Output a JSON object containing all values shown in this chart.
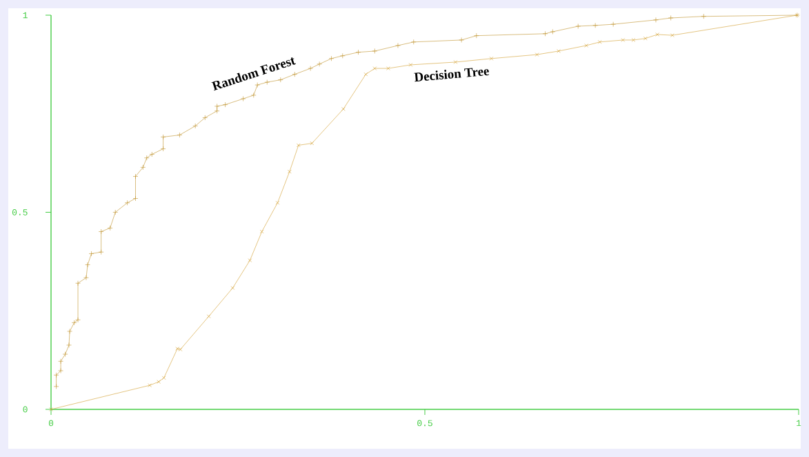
{
  "chart_data": {
    "type": "line",
    "xlim": [
      0,
      1
    ],
    "ylim": [
      0,
      1
    ],
    "xticks": [
      0,
      0.5,
      1
    ],
    "yticks": [
      0,
      0.5,
      1
    ],
    "grid": false,
    "series": [
      {
        "name": "Random Forest",
        "color": "#c0922c",
        "marker": "cross",
        "x": [
          0.007,
          0.007,
          0.013,
          0.013,
          0.019,
          0.024,
          0.025,
          0.031,
          0.036,
          0.036,
          0.047,
          0.049,
          0.054,
          0.067,
          0.067,
          0.079,
          0.086,
          0.102,
          0.113,
          0.113,
          0.123,
          0.128,
          0.135,
          0.15,
          0.15,
          0.172,
          0.193,
          0.206,
          0.222,
          0.222,
          0.233,
          0.257,
          0.271,
          0.276,
          0.289,
          0.307,
          0.326,
          0.347,
          0.359,
          0.375,
          0.39,
          0.411,
          0.433,
          0.464,
          0.485,
          0.549,
          0.569,
          0.661,
          0.671,
          0.705,
          0.728,
          0.752,
          0.809,
          0.829,
          0.873,
          0.998
        ],
        "values": [
          0.058,
          0.087,
          0.098,
          0.122,
          0.14,
          0.163,
          0.198,
          0.22,
          0.227,
          0.32,
          0.334,
          0.367,
          0.395,
          0.399,
          0.451,
          0.46,
          0.5,
          0.524,
          0.535,
          0.591,
          0.614,
          0.638,
          0.647,
          0.661,
          0.691,
          0.696,
          0.719,
          0.74,
          0.757,
          0.769,
          0.773,
          0.788,
          0.797,
          0.823,
          0.83,
          0.836,
          0.85,
          0.865,
          0.876,
          0.89,
          0.897,
          0.906,
          0.909,
          0.923,
          0.932,
          0.937,
          0.948,
          0.953,
          0.958,
          0.972,
          0.974,
          0.977,
          0.988,
          0.993,
          0.997,
          1
        ]
      },
      {
        "name": "Decision Tree",
        "color": "#d29e2e",
        "marker": "x",
        "x": [
          0,
          0.132,
          0.144,
          0.151,
          0.169,
          0.173,
          0.211,
          0.243,
          0.266,
          0.282,
          0.303,
          0.319,
          0.331,
          0.349,
          0.391,
          0.421,
          0.433,
          0.451,
          0.481,
          0.541,
          0.589,
          0.65,
          0.679,
          0.716,
          0.734,
          0.765,
          0.779,
          0.795,
          0.811,
          0.831,
          0.998
        ],
        "values": [
          0,
          0.061,
          0.07,
          0.08,
          0.154,
          0.152,
          0.236,
          0.308,
          0.378,
          0.451,
          0.524,
          0.603,
          0.67,
          0.675,
          0.762,
          0.85,
          0.865,
          0.865,
          0.874,
          0.881,
          0.89,
          0.9,
          0.909,
          0.923,
          0.932,
          0.937,
          0.937,
          0.941,
          0.951,
          0.949,
          1
        ]
      }
    ]
  }
}
